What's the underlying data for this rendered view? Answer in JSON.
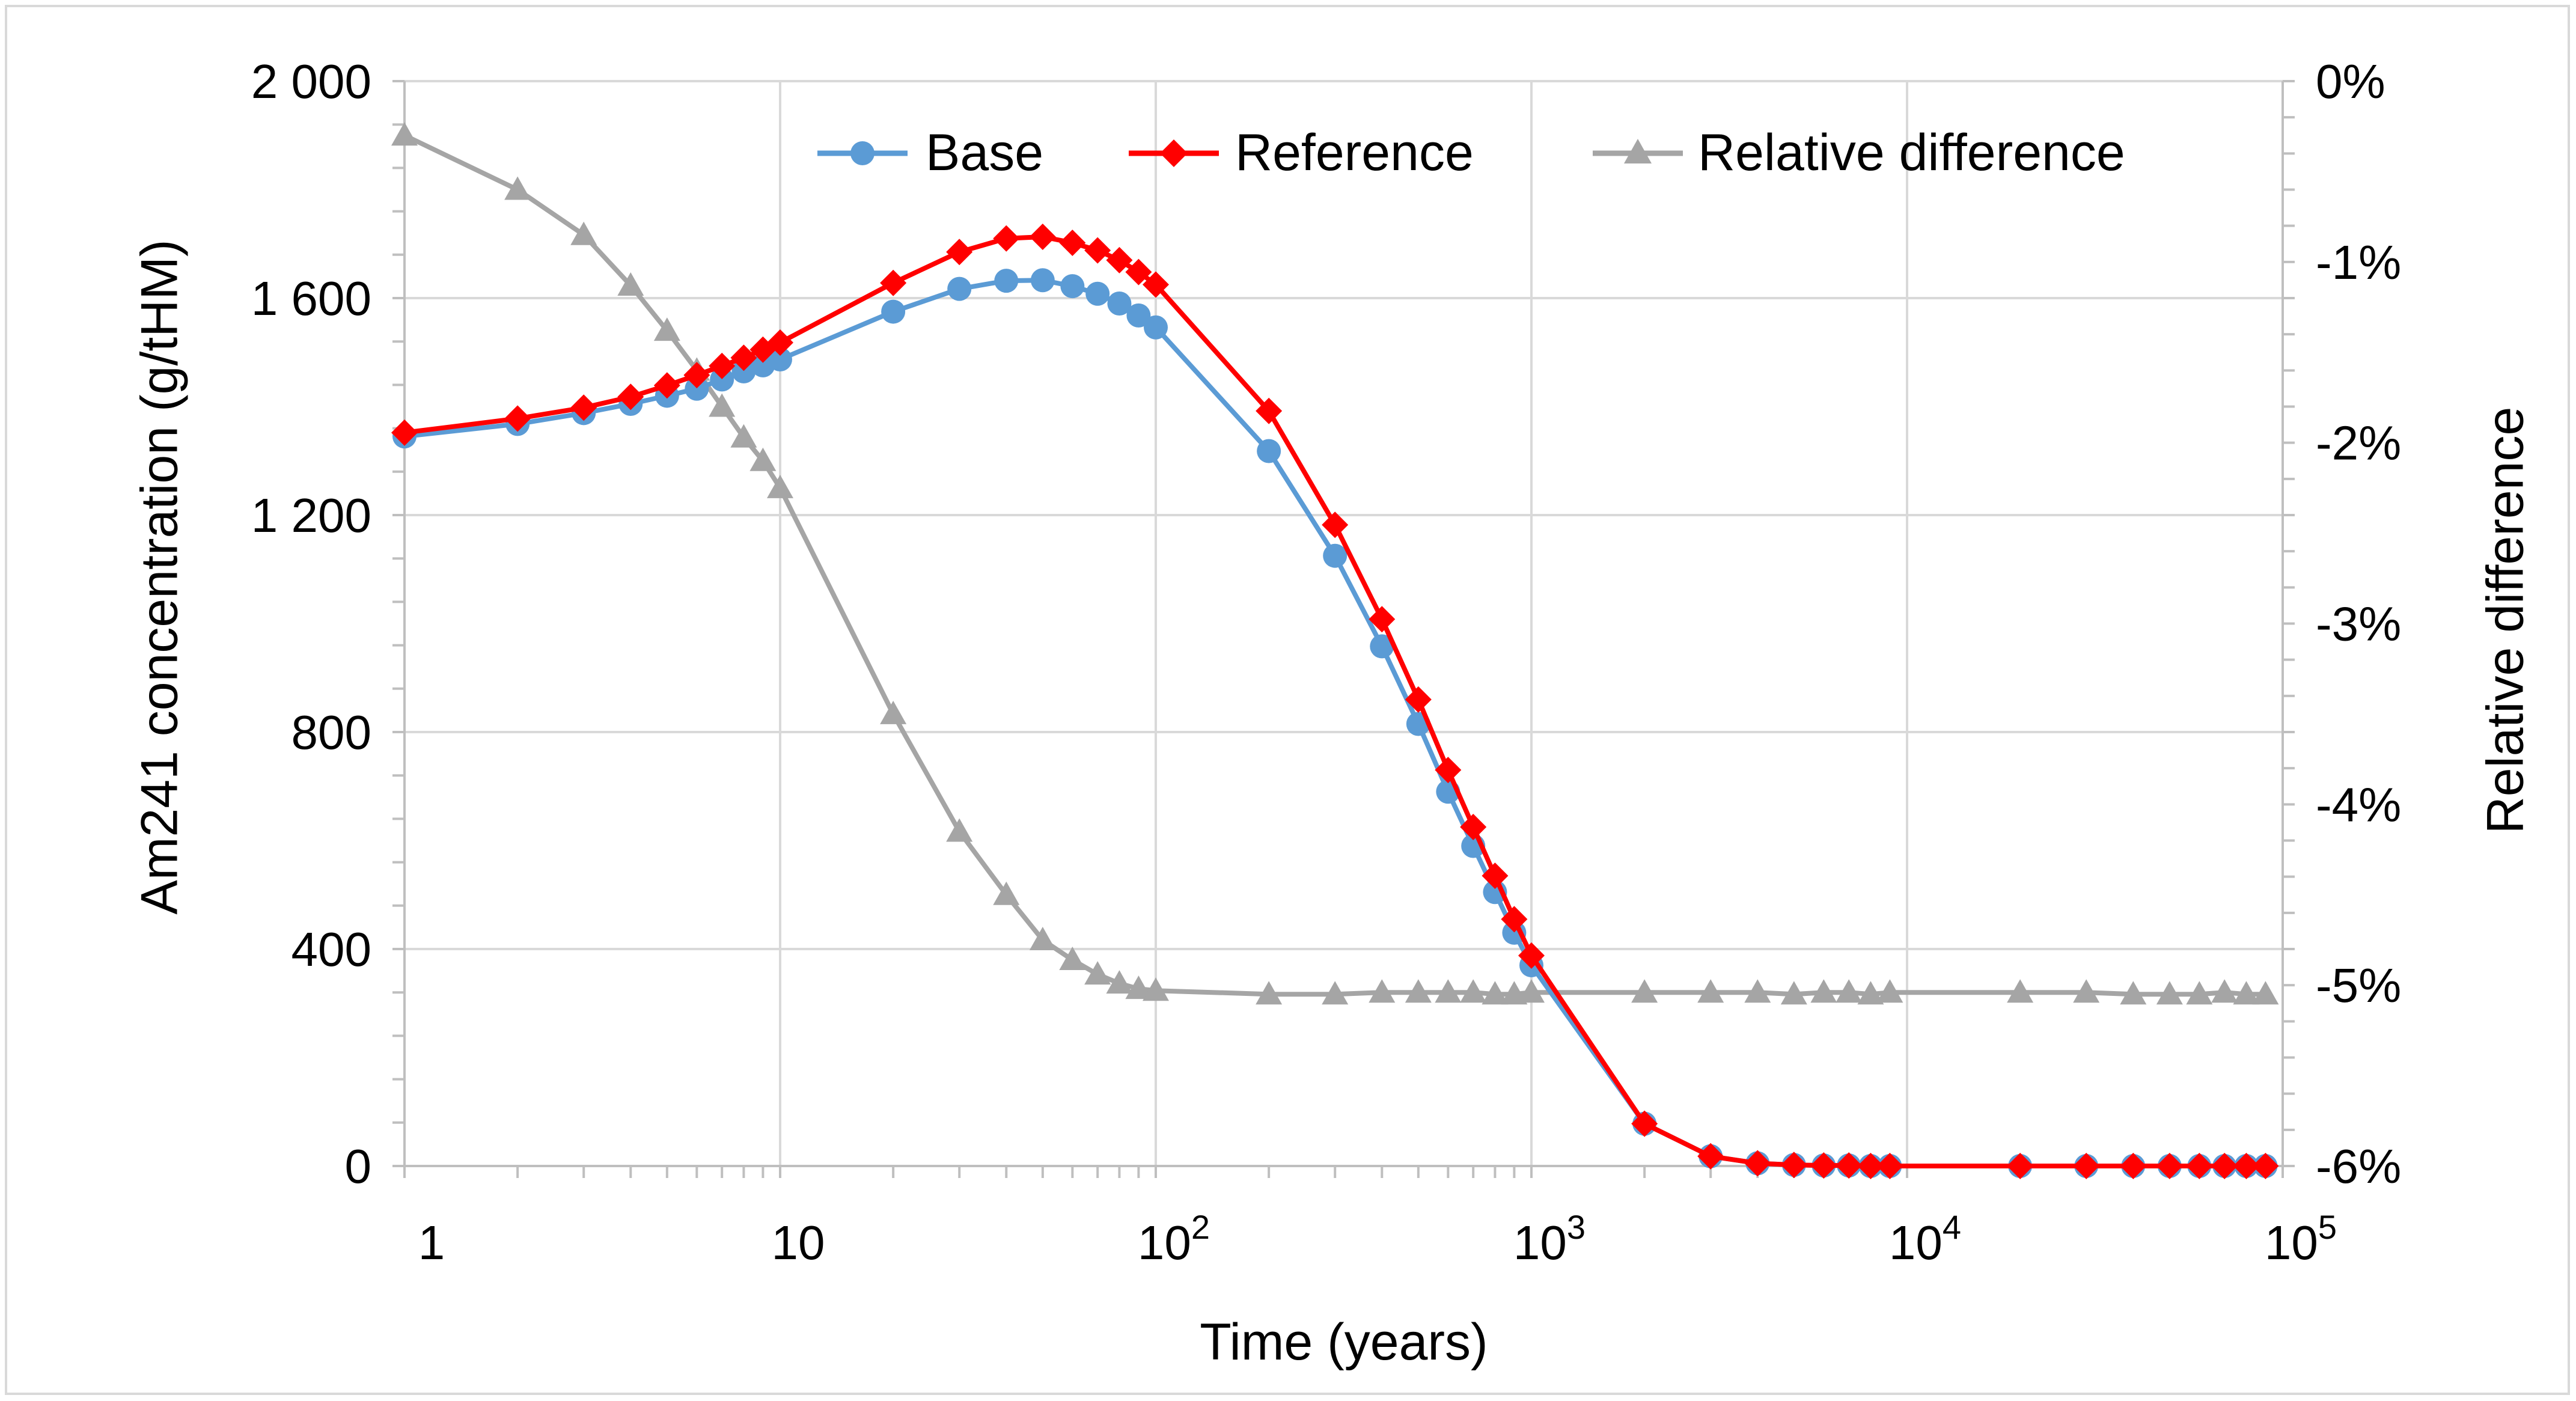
{
  "chart_data": {
    "type": "line",
    "title": "",
    "xlabel": "Time (years)",
    "ylabel": "Am241 concentration (g/tHM)",
    "y2label": "Relative difference",
    "xscale": "log",
    "xlim": [
      1,
      100000
    ],
    "ylim": [
      0,
      2000
    ],
    "y2lim": [
      -6,
      0
    ],
    "grid": true,
    "legend": "top-right",
    "x_tick_labels": [
      {
        "base": "1",
        "exp": ""
      },
      {
        "base": "10",
        "exp": ""
      },
      {
        "base": "10",
        "exp": "2"
      },
      {
        "base": "10",
        "exp": "3"
      },
      {
        "base": "10",
        "exp": "4"
      },
      {
        "base": "10",
        "exp": "5"
      }
    ],
    "y_tick_labels": [
      "0",
      "400",
      "800",
      "1 200",
      "1 600",
      "2 000"
    ],
    "y2_tick_labels": [
      "-6%",
      "-5%",
      "-4%",
      "-3%",
      "-2%",
      "-1%",
      "0%"
    ],
    "series": [
      {
        "name": "Base",
        "axis": "left",
        "marker": "circle",
        "color": "#5b9bd5",
        "x": [
          1,
          2,
          3,
          4,
          5,
          6,
          7,
          8,
          9,
          10,
          20,
          30,
          40,
          50,
          60,
          70,
          80,
          90,
          100,
          200,
          300,
          400,
          500,
          600,
          700,
          800,
          900,
          1000,
          2000,
          3000,
          4000,
          5000,
          6000,
          7000,
          8000,
          9000,
          20000,
          30000,
          40000,
          50000,
          60000,
          70000,
          80000,
          90000
        ],
        "values": [
          1345,
          1368,
          1388,
          1405,
          1420,
          1433,
          1450,
          1465,
          1476,
          1487,
          1575,
          1617,
          1632,
          1633,
          1622,
          1608,
          1590,
          1568,
          1546,
          1318,
          1125,
          958,
          815,
          690,
          590,
          505,
          430,
          370,
          78,
          18,
          5,
          2,
          1,
          1,
          0,
          0,
          0,
          0,
          0,
          0,
          0,
          0,
          0,
          0
        ]
      },
      {
        "name": "Reference",
        "axis": "left",
        "marker": "diamond",
        "color": "#ff0000",
        "x": [
          1,
          2,
          3,
          4,
          5,
          6,
          7,
          8,
          9,
          10,
          20,
          30,
          40,
          50,
          60,
          70,
          80,
          90,
          100,
          200,
          300,
          400,
          500,
          600,
          700,
          800,
          900,
          1000,
          2000,
          3000,
          4000,
          5000,
          6000,
          7000,
          8000,
          9000,
          20000,
          30000,
          40000,
          50000,
          60000,
          70000,
          80000,
          90000
        ],
        "values": [
          1352,
          1378,
          1398,
          1418,
          1439,
          1458,
          1475,
          1490,
          1505,
          1518,
          1628,
          1685,
          1710,
          1713,
          1702,
          1688,
          1670,
          1648,
          1625,
          1392,
          1182,
          1008,
          860,
          730,
          625,
          535,
          455,
          388,
          78,
          18,
          5,
          2,
          1,
          1,
          0,
          0,
          0,
          0,
          0,
          0,
          0,
          0,
          0,
          0
        ]
      },
      {
        "name": "Relative difference",
        "axis": "right",
        "marker": "triangle",
        "color": "#a5a5a5",
        "x": [
          1,
          2,
          3,
          4,
          5,
          6,
          7,
          8,
          9,
          10,
          20,
          30,
          40,
          50,
          60,
          70,
          80,
          90,
          100,
          200,
          300,
          400,
          500,
          600,
          700,
          800,
          900,
          1000,
          2000,
          3000,
          4000,
          5000,
          6000,
          7000,
          8000,
          9000,
          20000,
          30000,
          40000,
          50000,
          60000,
          70000,
          80000,
          90000
        ],
        "values": [
          -0.3,
          -0.6,
          -0.85,
          -1.13,
          -1.38,
          -1.6,
          -1.8,
          -1.97,
          -2.1,
          -2.25,
          -3.5,
          -4.15,
          -4.5,
          -4.75,
          -4.86,
          -4.94,
          -4.99,
          -5.02,
          -5.03,
          -5.05,
          -5.05,
          -5.04,
          -5.04,
          -5.04,
          -5.04,
          -5.05,
          -5.05,
          -5.04,
          -5.04,
          -5.04,
          -5.04,
          -5.05,
          -5.04,
          -5.04,
          -5.05,
          -5.04,
          -5.04,
          -5.04,
          -5.05,
          -5.05,
          -5.05,
          -5.04,
          -5.05,
          -5.05
        ]
      }
    ]
  }
}
